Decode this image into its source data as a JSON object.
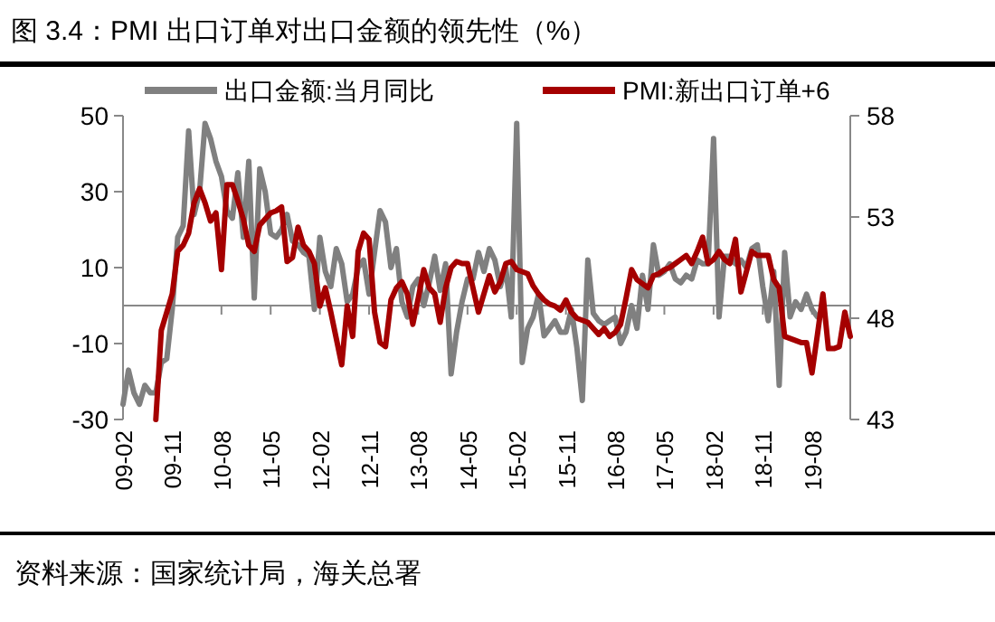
{
  "chart_data": {
    "type": "line",
    "title": "图 3.4：PMI 出口订单对出口金额的领先性（%）",
    "annotations": [
      "资料来源：国家统计局，海关总署"
    ],
    "categories": [
      "09-02",
      null,
      null,
      null,
      null,
      null,
      null,
      null,
      null,
      "09-11",
      null,
      null,
      null,
      null,
      null,
      null,
      null,
      null,
      "10-08",
      null,
      null,
      null,
      null,
      null,
      null,
      null,
      null,
      "11-05",
      null,
      null,
      null,
      null,
      null,
      null,
      null,
      null,
      "12-02",
      null,
      null,
      null,
      null,
      null,
      null,
      null,
      null,
      "12-11",
      null,
      null,
      null,
      null,
      null,
      null,
      null,
      null,
      "13-08",
      null,
      null,
      null,
      null,
      null,
      null,
      null,
      null,
      "14-05",
      null,
      null,
      null,
      null,
      null,
      null,
      null,
      null,
      "15-02",
      null,
      null,
      null,
      null,
      null,
      null,
      null,
      null,
      "15-11",
      null,
      null,
      null,
      null,
      null,
      null,
      null,
      null,
      "16-08",
      null,
      null,
      null,
      null,
      null,
      null,
      null,
      null,
      "17-05",
      null,
      null,
      null,
      null,
      null,
      null,
      null,
      null,
      "18-02",
      null,
      null,
      null,
      null,
      null,
      null,
      null,
      null,
      "18-11",
      null,
      null,
      null,
      null,
      null,
      null,
      null,
      null,
      "19-08",
      null,
      null,
      null,
      null,
      null,
      null,
      null
    ],
    "series": [
      {
        "name": "出口金额:当月同比",
        "color": "#808080",
        "axis": "y",
        "values": [
          -26,
          -17,
          -23,
          -26,
          -21,
          -23,
          -23,
          -15,
          -14,
          -1,
          18,
          21,
          46,
          24,
          30,
          48,
          44,
          38,
          34,
          25,
          23,
          35,
          18,
          38,
          2,
          36,
          30,
          19,
          18,
          20,
          24,
          17,
          16,
          14,
          13,
          -1,
          18,
          9,
          5,
          15,
          11,
          1,
          3,
          10,
          12,
          3,
          14,
          25,
          22,
          10,
          15,
          1,
          -3,
          5,
          7,
          0,
          6,
          13,
          4,
          11,
          -18,
          -7,
          1,
          7,
          7,
          14,
          9,
          15,
          12,
          5,
          10,
          -3,
          48,
          -15,
          -6,
          -3,
          3,
          -8,
          -6,
          -4,
          -7,
          -7,
          -1,
          -11,
          -25,
          12,
          -2,
          -4,
          -5,
          -4,
          -3,
          -10,
          -7,
          0,
          -6,
          8,
          -1,
          16,
          8,
          9,
          11,
          7,
          6,
          8,
          7,
          12,
          11,
          11,
          44,
          -3,
          13,
          13,
          11,
          12,
          10,
          15,
          16,
          5,
          -4,
          9,
          -21,
          14,
          -3,
          1,
          -1,
          3,
          -1,
          -3,
          null,
          null,
          null,
          null,
          null,
          null
        ]
      },
      {
        "name": "PMI:新出口订单+6",
        "color": "#a50000",
        "axis": "y2",
        "values": [
          null,
          null,
          null,
          null,
          null,
          null,
          43.0,
          47.4,
          48.3,
          49.2,
          51.3,
          51.6,
          52.2,
          53.7,
          54.4,
          53.7,
          52.8,
          53.2,
          50.4,
          54.6,
          54.6,
          53.8,
          52.9,
          51.6,
          51.3,
          52.6,
          52.9,
          53.2,
          53.3,
          53.5,
          50.8,
          51.0,
          52.5,
          51.6,
          51.3,
          50.7,
          48.6,
          49.5,
          48.3,
          47.0,
          45.7,
          48.6,
          47.1,
          51.3,
          52.2,
          51.9,
          48.3,
          46.8,
          46.6,
          48.9,
          49.5,
          49.8,
          49.2,
          47.7,
          49.0,
          50.4,
          49.5,
          49.2,
          47.8,
          49.5,
          50.5,
          50.8,
          50.7,
          50.7,
          49.5,
          48.3,
          49.2,
          50.1,
          49.3,
          49.8,
          50.7,
          50.8,
          50.4,
          50.3,
          50.2,
          49.6,
          49.2,
          48.9,
          48.7,
          48.6,
          48.4,
          48.9,
          48.3,
          48.0,
          47.9,
          47.8,
          47.5,
          47.2,
          47.5,
          47.1,
          47.3,
          47.7,
          49.0,
          50.4,
          49.9,
          49.7,
          49.5,
          50.1,
          50.2,
          50.4,
          50.5,
          50.7,
          50.9,
          51.1,
          50.7,
          51.3,
          52.0,
          50.7,
          50.9,
          51.3,
          50.9,
          50.7,
          51.9,
          49.3,
          50.3,
          51.3,
          51.1,
          51.1,
          51.1,
          49.9,
          49.5,
          47.1,
          47.0,
          46.9,
          46.8,
          46.8,
          45.3,
          47.2,
          49.2,
          46.5,
          46.5,
          46.6,
          48.3,
          47.1
        ]
      }
    ],
    "ylim": [
      -30,
      50
    ],
    "yticks": [
      -30,
      -10,
      10,
      30,
      50
    ],
    "y2lim": [
      43,
      58
    ],
    "y2ticks": [
      43,
      48,
      53,
      58
    ],
    "legend": "top"
  }
}
